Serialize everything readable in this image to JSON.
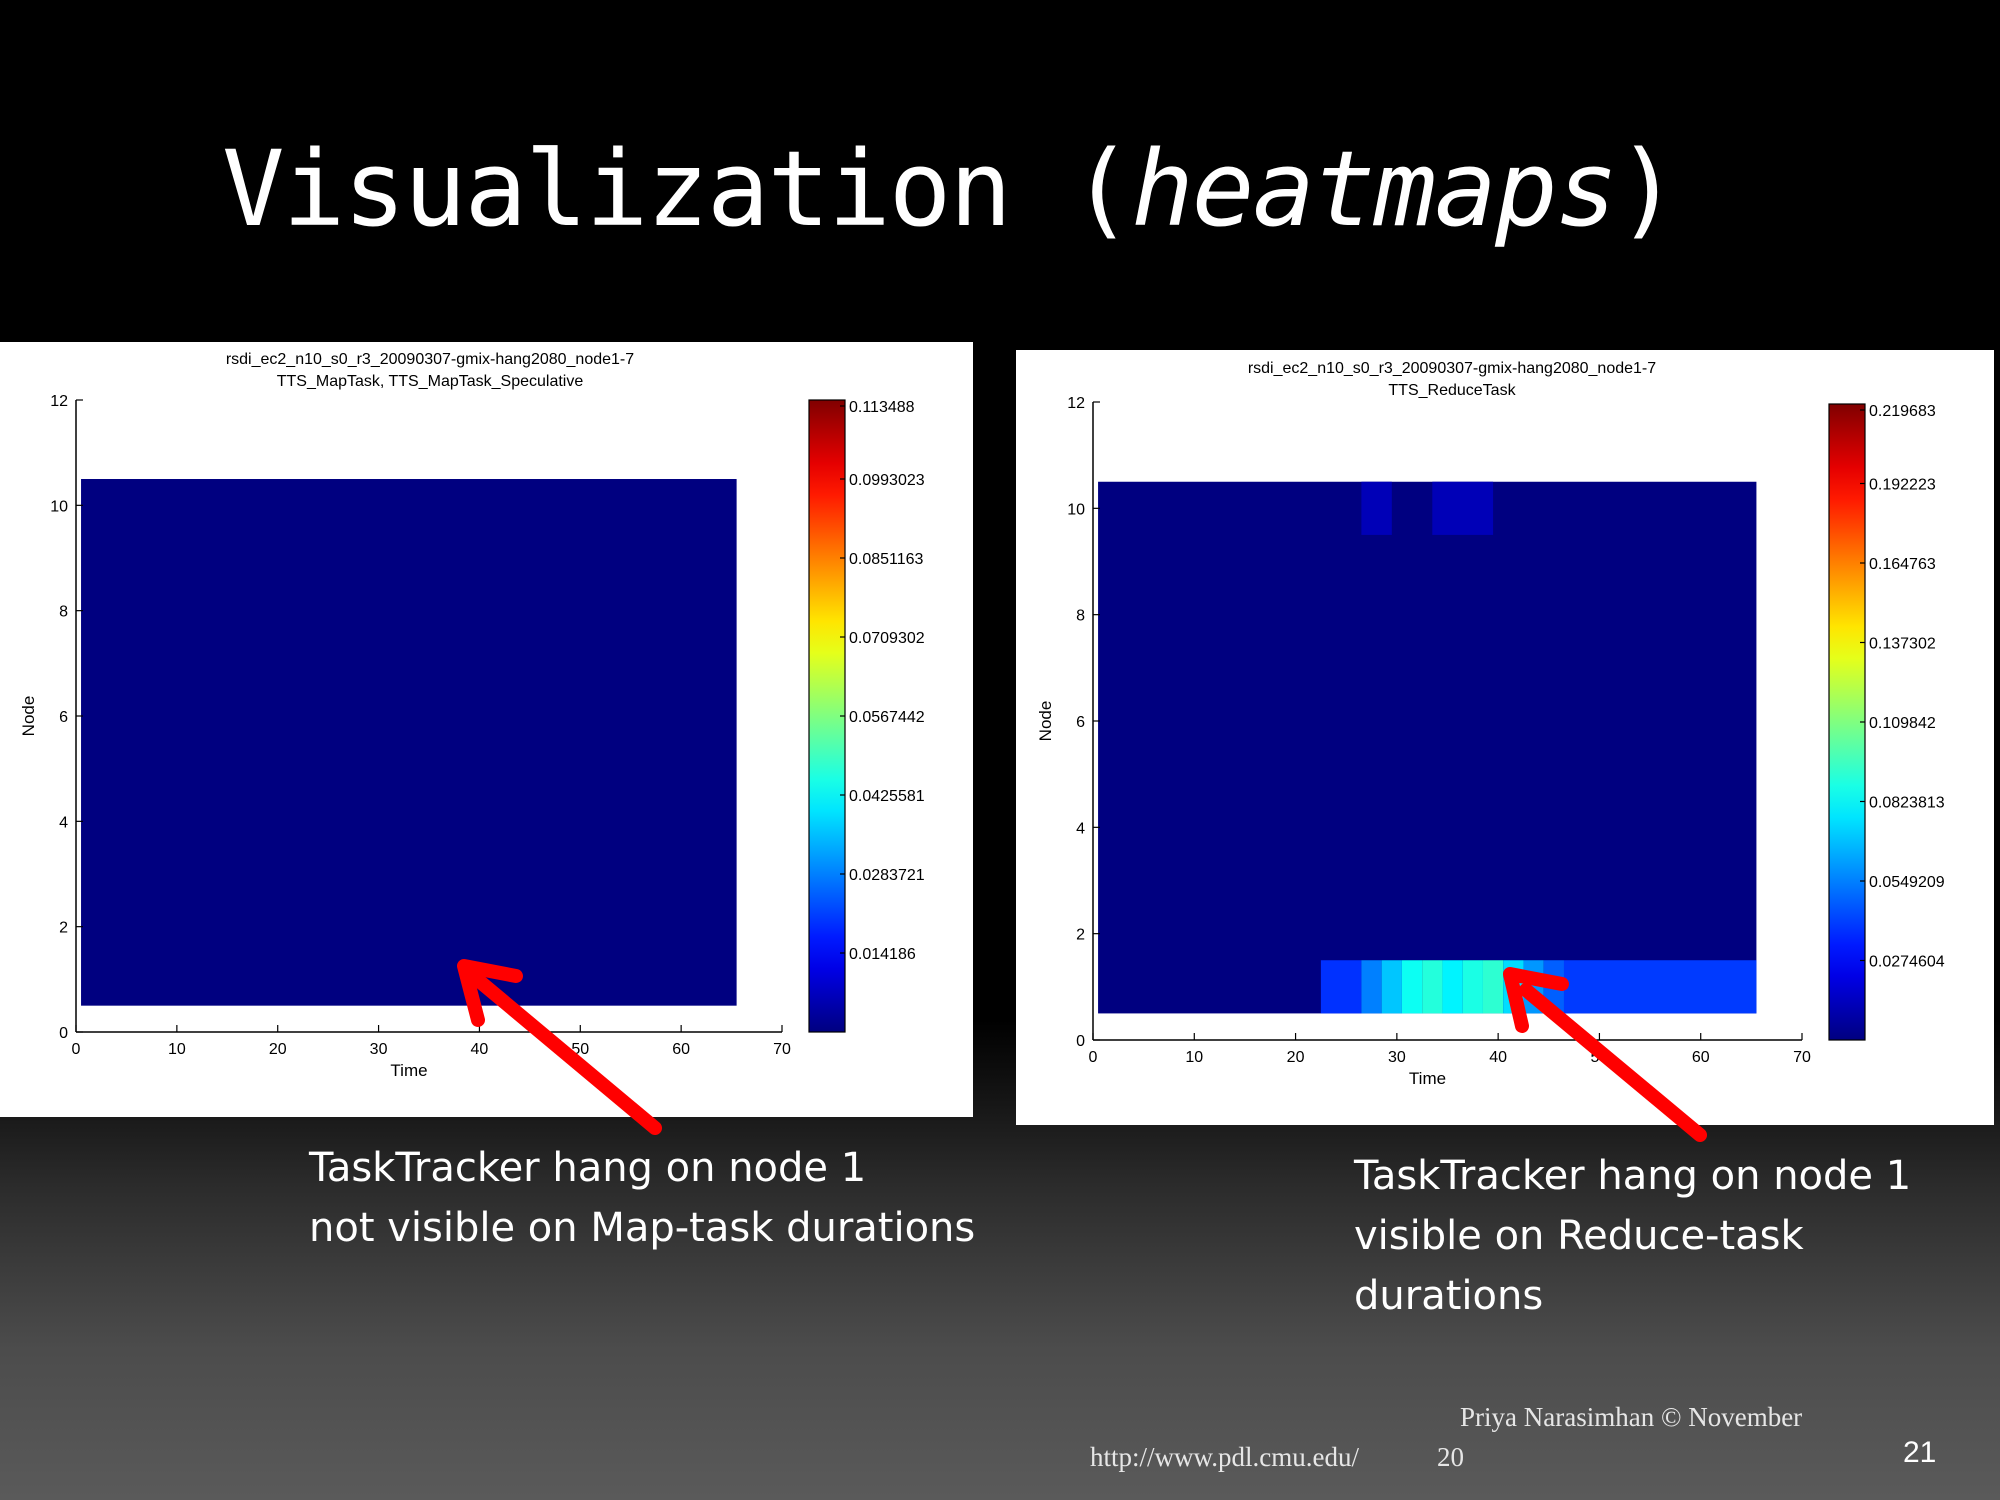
{
  "slide": {
    "title_main": "Visualization (",
    "title_italic": "heatmaps",
    "title_close": ")"
  },
  "captions": {
    "left": [
      "TaskTracker hang on node 1",
      "not visible on Map-task durations"
    ],
    "right": [
      "TaskTracker hang on node 1",
      "visible on Reduce-task",
      "durations"
    ]
  },
  "footer": {
    "author": "Priya Narasimhan  © November",
    "url": "http://www.pdl.cmu.edu/",
    "year": "20",
    "page": "21"
  },
  "colors": {
    "background_title": "#000000",
    "heatmap_base": "#00008f",
    "arrow": "#ff0000"
  },
  "chart_data": [
    {
      "type": "heatmap",
      "title": [
        "rsdi_ec2_n10_s0_r3_20090307-gmix-hang2080_node1-7",
        "TTS_MapTask, TTS_MapTask_Speculative"
      ],
      "xlabel": "Time",
      "ylabel": "Node",
      "xlim": [
        0,
        70
      ],
      "ylim": [
        0,
        12
      ],
      "xticks": [
        0,
        10,
        20,
        30,
        40,
        50,
        60,
        70
      ],
      "yticks": [
        0,
        2,
        4,
        6,
        8,
        10,
        12
      ],
      "data_extent": {
        "x": [
          0.5,
          65.5
        ],
        "y": [
          0.5,
          10.5
        ]
      },
      "colorbar": {
        "min": 0,
        "max": 0.113488,
        "ticks": [
          "0.113488",
          "0.0993023",
          "0.0851163",
          "0.0709302",
          "0.0567442",
          "0.0425581",
          "0.0283721",
          "0.014186"
        ]
      },
      "cells": []
    },
    {
      "type": "heatmap",
      "title": [
        "rsdi_ec2_n10_s0_r3_20090307-gmix-hang2080_node1-7",
        "TTS_ReduceTask"
      ],
      "xlabel": "Time",
      "ylabel": "Node",
      "xlim": [
        0,
        70
      ],
      "ylim": [
        0,
        12
      ],
      "xticks": [
        0,
        10,
        20,
        30,
        40,
        50,
        60,
        70
      ],
      "yticks": [
        0,
        2,
        4,
        6,
        8,
        10,
        12
      ],
      "data_extent": {
        "x": [
          0.5,
          65.5
        ],
        "y": [
          0.5,
          10.5
        ]
      },
      "colorbar": {
        "min": 0,
        "max": 0.219683,
        "ticks": [
          "0.219683",
          "0.192223",
          "0.164763",
          "0.137302",
          "0.109842",
          "0.0823813",
          "0.0549209",
          "0.0274604"
        ]
      },
      "cells": [
        {
          "x0": 22.5,
          "x1": 26.5,
          "y0": 0.5,
          "y1": 1.5,
          "v": 0.038
        },
        {
          "x0": 26.5,
          "x1": 28.5,
          "y0": 0.5,
          "y1": 1.5,
          "v": 0.055
        },
        {
          "x0": 28.5,
          "x1": 30.5,
          "y0": 0.5,
          "y1": 1.5,
          "v": 0.07
        },
        {
          "x0": 30.5,
          "x1": 32.5,
          "y0": 0.5,
          "y1": 1.5,
          "v": 0.085
        },
        {
          "x0": 32.5,
          "x1": 34.5,
          "y0": 0.5,
          "y1": 1.5,
          "v": 0.09
        },
        {
          "x0": 34.5,
          "x1": 36.5,
          "y0": 0.5,
          "y1": 1.5,
          "v": 0.08
        },
        {
          "x0": 36.5,
          "x1": 38.5,
          "y0": 0.5,
          "y1": 1.5,
          "v": 0.088
        },
        {
          "x0": 38.5,
          "x1": 40.5,
          "y0": 0.5,
          "y1": 1.5,
          "v": 0.092
        },
        {
          "x0": 40.5,
          "x1": 42.5,
          "y0": 0.5,
          "y1": 1.5,
          "v": 0.075
        },
        {
          "x0": 42.5,
          "x1": 44.5,
          "y0": 0.5,
          "y1": 1.5,
          "v": 0.06
        },
        {
          "x0": 44.5,
          "x1": 46.5,
          "y0": 0.5,
          "y1": 1.5,
          "v": 0.048
        },
        {
          "x0": 46.5,
          "x1": 65.5,
          "y0": 0.5,
          "y1": 1.5,
          "v": 0.04
        },
        {
          "x0": 26.5,
          "x1": 29.5,
          "y0": 9.5,
          "y1": 10.5,
          "v": 0.012
        },
        {
          "x0": 33.5,
          "x1": 39.5,
          "y0": 9.5,
          "y1": 10.5,
          "v": 0.012
        }
      ]
    }
  ]
}
